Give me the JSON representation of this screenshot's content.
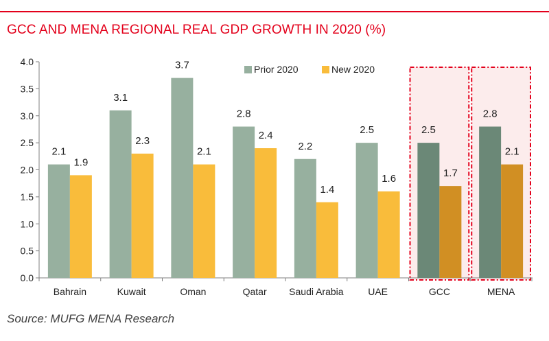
{
  "title": "GCC AND MENA REGIONAL REAL GDP GROWTH IN 2020 (%)",
  "source": "Source: MUFG MENA Research",
  "colors": {
    "accent": "#e3001b",
    "prior": "#97b09f",
    "new": "#f9bc3b",
    "prior_highlight": "#6b8877",
    "new_highlight": "#d18f23",
    "highlight_bg": "#fcecec"
  },
  "chart_data": {
    "type": "bar",
    "title": "GCC AND MENA REGIONAL REAL GDP GROWTH IN 2020 (%)",
    "xlabel": "",
    "ylabel": "",
    "ylim": [
      0,
      4.0
    ],
    "yticks": [
      "0.0",
      "0.5",
      "1.0",
      "1.5",
      "2.0",
      "2.5",
      "3.0",
      "3.5",
      "4.0"
    ],
    "categories": [
      "Bahrain",
      "Kuwait",
      "Oman",
      "Qatar",
      "Saudi Arabia",
      "UAE",
      "GCC",
      "MENA"
    ],
    "highlighted": [
      "GCC",
      "MENA"
    ],
    "series": [
      {
        "name": "Prior 2020",
        "values": [
          2.1,
          3.1,
          3.7,
          2.8,
          2.2,
          2.5,
          2.5,
          2.8
        ],
        "labels": [
          "2.1",
          "3.1",
          "3.7",
          "2.8",
          "2.2",
          "2.5",
          "2.5",
          "2.8"
        ]
      },
      {
        "name": "New 2020",
        "values": [
          1.9,
          2.3,
          2.1,
          2.4,
          1.4,
          1.6,
          1.7,
          2.1
        ],
        "labels": [
          "1.9",
          "2.3",
          "2.1",
          "2.4",
          "1.4",
          "1.6",
          "1.7",
          "2.1"
        ]
      }
    ],
    "grid": false,
    "legend": "top-center"
  }
}
